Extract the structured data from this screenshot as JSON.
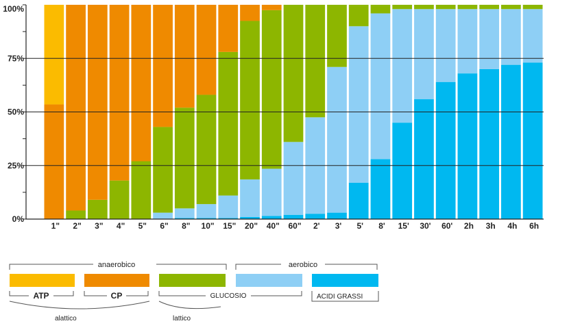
{
  "chart_data": {
    "type": "bar",
    "stacked": true,
    "categories": [
      "1\"",
      "2\"",
      "3\"",
      "4\"",
      "5\"",
      "6\"",
      "8\"",
      "10\"",
      "15\"",
      "20\"",
      "40\"",
      "60\"",
      "2'",
      "3'",
      "5'",
      "8'",
      "15'",
      "30'",
      "60'",
      "2h",
      "3h",
      "4h",
      "6h"
    ],
    "ylim": [
      0,
      100
    ],
    "yticks": [
      "0%",
      "25%",
      "50%",
      "75%",
      "100%"
    ],
    "grid": "horizontal at 25%, 50%, 75%",
    "series": [
      {
        "key": "acidi",
        "color": "#00b8f0",
        "values": [
          0,
          0,
          0,
          0,
          0,
          0,
          0.5,
          0.5,
          0.5,
          1,
          1.5,
          2,
          2.5,
          3,
          17,
          28,
          45,
          56,
          64,
          68,
          70,
          72,
          73
        ]
      },
      {
        "key": "glicogeno",
        "color": "#8ecff5",
        "values": [
          0,
          0,
          0,
          0,
          0,
          3,
          4.5,
          6.5,
          10.5,
          17.5,
          22,
          34,
          45,
          68,
          73,
          68,
          53,
          42,
          34,
          30,
          28,
          26,
          25
        ]
      },
      {
        "key": "glucosio",
        "color": "#8db600",
        "values": [
          0,
          4,
          9,
          18,
          27,
          40,
          47,
          51,
          67,
          74,
          74,
          64,
          52.5,
          29,
          9.5,
          3.5,
          0,
          0,
          0,
          0,
          0,
          0,
          0
        ]
      },
      {
        "key": "cp",
        "color": "#ef8a00",
        "values": [
          53.5,
          96,
          91,
          82,
          73,
          57,
          48,
          42,
          22,
          7.5,
          2.5,
          0,
          0,
          0,
          0,
          0,
          0,
          0,
          0,
          0,
          0,
          0,
          0
        ]
      },
      {
        "key": "atp",
        "color": "#fbbb00",
        "values": [
          46.5,
          0,
          0,
          0,
          0,
          0,
          0,
          0,
          0,
          0,
          0,
          0,
          0,
          0,
          0,
          0,
          0,
          0,
          0,
          0,
          0,
          0,
          0
        ]
      },
      {
        "key": "top",
        "color": "#8db600",
        "values": [
          0,
          0,
          0,
          0,
          0,
          0,
          0,
          0,
          0,
          0,
          0,
          0,
          0,
          0,
          0.5,
          0.5,
          2,
          2,
          2,
          2,
          2,
          2,
          2
        ]
      }
    ]
  },
  "legend": {
    "anaerobico": "anaerobico",
    "aerobico": "aerobico",
    "atp": "ATP",
    "cp": "CP",
    "glucosio": "GLUCOSIO",
    "acidi": "ACIDI GRASSI",
    "alattico": "alattico",
    "lattico": "lattico",
    "colors": [
      "#fbbb00",
      "#ef8a00",
      "#8db600",
      "#8ecff5",
      "#00b8f0"
    ]
  }
}
